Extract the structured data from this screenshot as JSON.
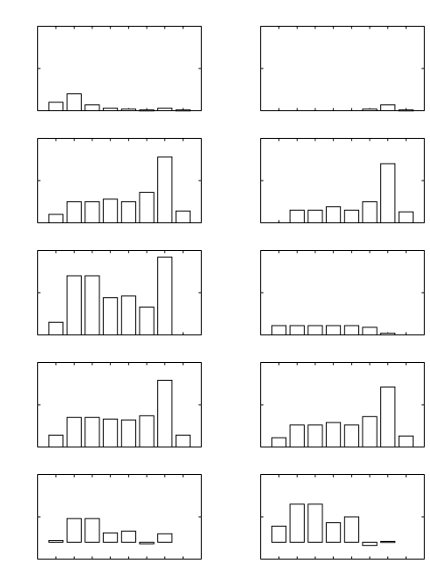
{
  "figure": {
    "rows": 5,
    "cols": 2
  },
  "chart_data": [
    {
      "type": "bar",
      "ylim": [
        0,
        1
      ],
      "grid": false,
      "values": [
        0.1,
        0.2,
        0.07,
        0.03,
        0.02,
        0.01,
        0.03,
        0.01
      ]
    },
    {
      "type": "bar",
      "ylim": [
        0,
        1
      ],
      "grid": false,
      "values": [
        0,
        0,
        0,
        0,
        0,
        0.02,
        0.07,
        0.01
      ]
    },
    {
      "type": "bar",
      "ylim": [
        0,
        1
      ],
      "grid": false,
      "values": [
        0.1,
        0.25,
        0.25,
        0.28,
        0.25,
        0.36,
        0.78,
        0.14
      ]
    },
    {
      "type": "bar",
      "ylim": [
        0,
        1
      ],
      "grid": false,
      "values": [
        0,
        0.15,
        0.15,
        0.19,
        0.15,
        0.25,
        0.7,
        0.13
      ]
    },
    {
      "type": "bar",
      "ylim": [
        0,
        1
      ],
      "grid": false,
      "values": [
        0.15,
        0.7,
        0.7,
        0.44,
        0.46,
        0.33,
        0.92,
        0
      ]
    },
    {
      "type": "bar",
      "ylim": [
        0,
        1
      ],
      "grid": false,
      "values": [
        0.11,
        0.11,
        0.11,
        0.11,
        0.11,
        0.09,
        0.02,
        0
      ]
    },
    {
      "type": "bar",
      "ylim": [
        0,
        1
      ],
      "grid": false,
      "values": [
        0.14,
        0.35,
        0.35,
        0.33,
        0.32,
        0.37,
        0.79,
        0.14
      ]
    },
    {
      "type": "bar",
      "ylim": [
        0,
        1
      ],
      "grid": false,
      "values": [
        0.11,
        0.26,
        0.26,
        0.29,
        0.26,
        0.36,
        0.71,
        0.13
      ]
    },
    {
      "type": "bar",
      "ylim": [
        -0.2,
        0.8
      ],
      "grid": false,
      "values": [
        0.02,
        0.28,
        0.28,
        0.11,
        0.13,
        -0.02,
        0.1,
        0
      ]
    },
    {
      "type": "bar",
      "ylim": [
        -0.2,
        0.8
      ],
      "grid": false,
      "values": [
        0.19,
        0.45,
        0.45,
        0.23,
        0.3,
        -0.04,
        0.01,
        0
      ]
    }
  ]
}
